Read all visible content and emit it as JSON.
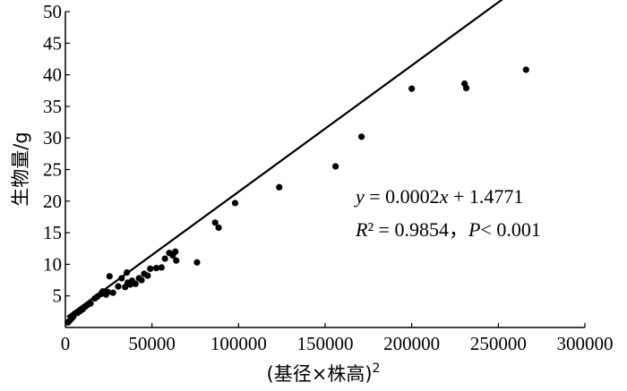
{
  "chart_data": {
    "type": "scatter",
    "xlabel": "(基径×株高)",
    "xlabel_sup": "2",
    "ylabel": "生物量/g",
    "xlim": [
      0,
      300000
    ],
    "ylim": [
      0,
      50
    ],
    "x_ticks": [
      0,
      50000,
      100000,
      150000,
      200000,
      250000,
      300000
    ],
    "y_ticks": [
      5,
      10,
      15,
      20,
      25,
      30,
      35,
      40,
      45,
      50
    ],
    "grid": false,
    "legend": "none",
    "fit_line": {
      "slope": 0.0002,
      "intercept": 1.4771,
      "x_range": [
        1000,
        266000
      ]
    },
    "equation": {
      "y_var": "y",
      "y_rhs": " = 0.0002",
      "x_var": "x",
      "x_rhs": " + 1.4771",
      "r_var": "R",
      "r_rhs": "² = 0.9854，",
      "p_var": "P",
      "p_rhs": "< 0.001"
    },
    "points": [
      [
        1500,
        0.8
      ],
      [
        2500,
        1.1
      ],
      [
        3500,
        1.4
      ],
      [
        4500,
        1.7
      ],
      [
        5500,
        2.2
      ],
      [
        7000,
        2.3
      ],
      [
        8500,
        2.6
      ],
      [
        10000,
        2.9
      ],
      [
        11500,
        3.3
      ],
      [
        13000,
        3.6
      ],
      [
        14500,
        3.8
      ],
      [
        17000,
        4.6
      ],
      [
        18500,
        4.9
      ],
      [
        20500,
        5.3
      ],
      [
        21500,
        5.7
      ],
      [
        23500,
        5.2
      ],
      [
        24500,
        5.6
      ],
      [
        25500,
        8.1
      ],
      [
        27500,
        5.5
      ],
      [
        30500,
        6.5
      ],
      [
        32500,
        7.8
      ],
      [
        34500,
        6.4
      ],
      [
        35500,
        8.7
      ],
      [
        36000,
        7.1
      ],
      [
        37500,
        6.8
      ],
      [
        38500,
        7.4
      ],
      [
        40500,
        6.9
      ],
      [
        42500,
        7.8
      ],
      [
        44000,
        7.5
      ],
      [
        45500,
        8.5
      ],
      [
        47500,
        8.2
      ],
      [
        49000,
        9.3
      ],
      [
        52500,
        9.4
      ],
      [
        55500,
        9.5
      ],
      [
        57500,
        10.9
      ],
      [
        60000,
        11.8
      ],
      [
        62000,
        11.4
      ],
      [
        63500,
        12.0
      ],
      [
        64000,
        10.6
      ],
      [
        76000,
        10.3
      ],
      [
        86500,
        16.6
      ],
      [
        88500,
        15.8
      ],
      [
        98000,
        19.7
      ],
      [
        123500,
        22.2
      ],
      [
        156000,
        25.5
      ],
      [
        171000,
        30.2
      ],
      [
        200000,
        37.8
      ],
      [
        230500,
        38.6
      ],
      [
        231500,
        37.9
      ],
      [
        266000,
        40.8
      ]
    ],
    "color": "#000000"
  }
}
